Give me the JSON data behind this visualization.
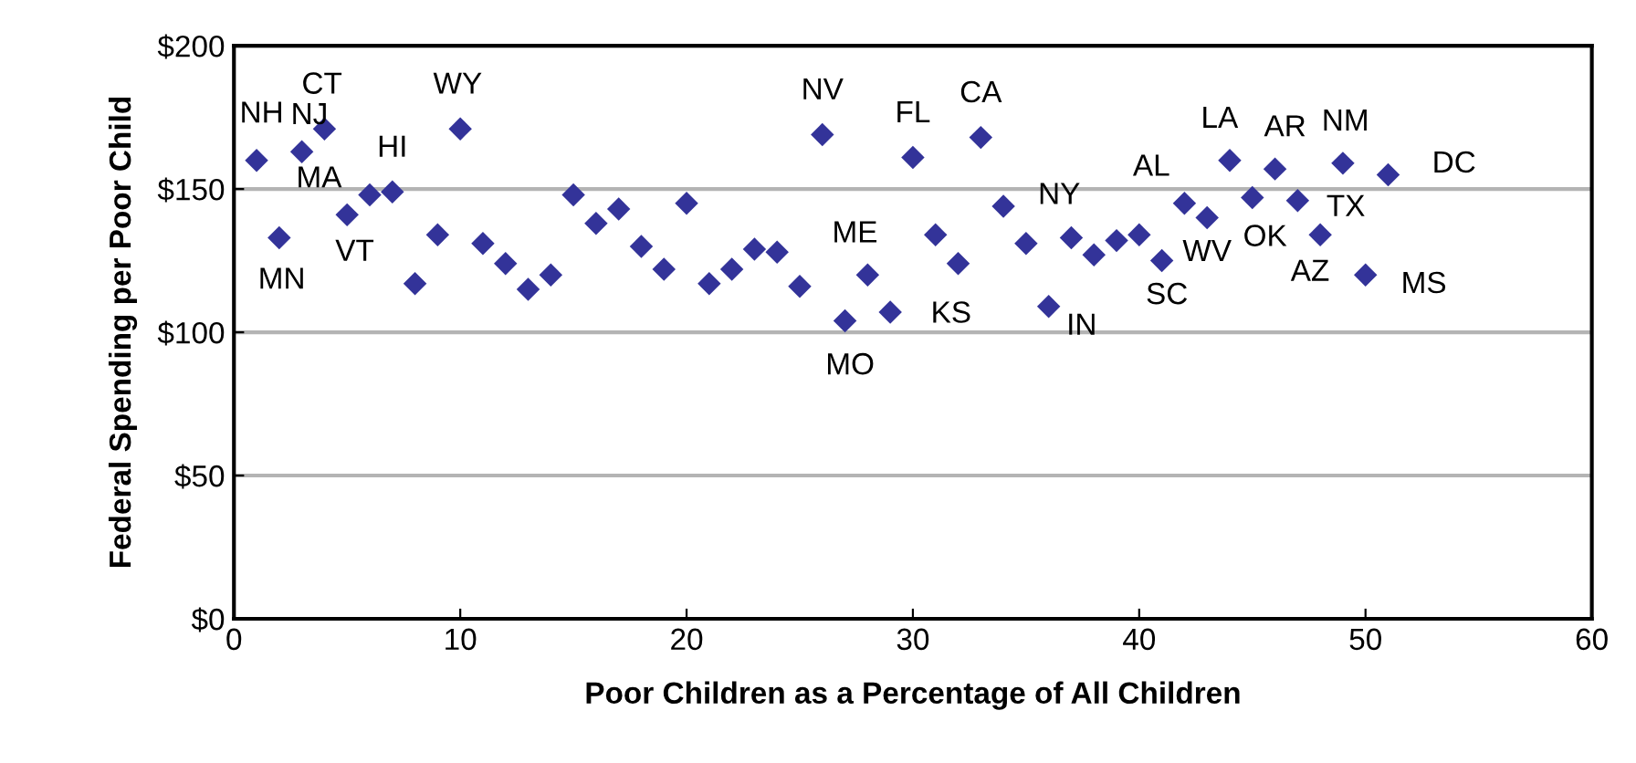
{
  "chart_data": {
    "type": "scatter",
    "xlabel": "Poor Children as a Percentage of All Children",
    "ylabel": "Federal Spending per Poor Child",
    "x": [
      1,
      2,
      3,
      4,
      5,
      6,
      7,
      8,
      9,
      10,
      11,
      12,
      13,
      14,
      15,
      16,
      17,
      18,
      19,
      20,
      21,
      22,
      23,
      24,
      25,
      26,
      27,
      28,
      29,
      30,
      31,
      32,
      33,
      34,
      35,
      36,
      37,
      38,
      39,
      40,
      41,
      42,
      43,
      44,
      45,
      46,
      47,
      48,
      49,
      50,
      51
    ],
    "series": [
      {
        "color": "#333399",
        "values": [
          160,
          133,
          163,
          171,
          141,
          148,
          149,
          117,
          134,
          171,
          131,
          124,
          115,
          120,
          148,
          138,
          143,
          130,
          122,
          145,
          117,
          122,
          129,
          128,
          116,
          169,
          104,
          120,
          107,
          161,
          134,
          124,
          168,
          144,
          131,
          109,
          133,
          127,
          132,
          134,
          125,
          145,
          140,
          160,
          147,
          157,
          146,
          134,
          159,
          120,
          155
        ]
      }
    ],
    "marker": "diamond",
    "grid": "y",
    "xlim": [
      0,
      60
    ],
    "xticks": [
      0,
      10,
      20,
      30,
      40,
      50,
      60
    ],
    "ylim": [
      0,
      200
    ],
    "yticks": [
      {
        "value": 0,
        "label": "$0"
      },
      {
        "value": 50,
        "label": "$50"
      },
      {
        "value": 100,
        "label": "$100"
      },
      {
        "value": 150,
        "label": "$150"
      },
      {
        "value": 200,
        "label": "$200"
      }
    ],
    "annotations": [
      {
        "text": "NH",
        "x": 1,
        "y": 160
      },
      {
        "text": "MN",
        "x": 2,
        "y": 133
      },
      {
        "text": "NJ",
        "x": 3,
        "y": 163
      },
      {
        "text": "CT",
        "x": 4,
        "y": 171
      },
      {
        "text": "VT",
        "x": 5,
        "y": 141
      },
      {
        "text": "MA",
        "x": 6,
        "y": 148
      },
      {
        "text": "HI",
        "x": 7,
        "y": 149
      },
      {
        "text": "WY",
        "x": 10,
        "y": 171
      },
      {
        "text": "NV",
        "x": 26,
        "y": 169
      },
      {
        "text": "MO",
        "x": 27,
        "y": 104
      },
      {
        "text": "ME",
        "x": 28,
        "y": 120
      },
      {
        "text": "KS",
        "x": 29,
        "y": 107
      },
      {
        "text": "FL",
        "x": 30,
        "y": 161
      },
      {
        "text": "CA",
        "x": 33,
        "y": 168
      },
      {
        "text": "NY",
        "x": 34,
        "y": 144
      },
      {
        "text": "IN",
        "x": 36,
        "y": 109
      },
      {
        "text": "SC",
        "x": 41,
        "y": 125
      },
      {
        "text": "AL",
        "x": 42,
        "y": 145
      },
      {
        "text": "WV",
        "x": 43,
        "y": 140
      },
      {
        "text": "LA",
        "x": 44,
        "y": 160
      },
      {
        "text": "OK",
        "x": 45,
        "y": 147
      },
      {
        "text": "AR",
        "x": 46,
        "y": 157
      },
      {
        "text": "TX",
        "x": 47,
        "y": 146
      },
      {
        "text": "AZ",
        "x": 48,
        "y": 134
      },
      {
        "text": "NM",
        "x": 49,
        "y": 159
      },
      {
        "text": "MS",
        "x": 50,
        "y": 120
      },
      {
        "text": "DC",
        "x": 51,
        "y": 155
      }
    ]
  }
}
